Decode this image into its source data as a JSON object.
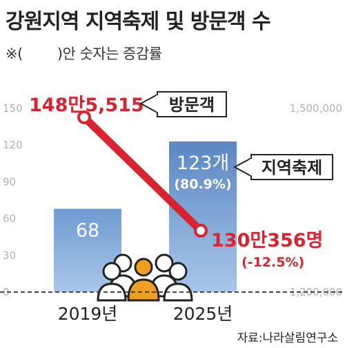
{
  "title": "강원지역 지역축제 및 방문객 수",
  "note": {
    "prefix": "※(",
    "suffix": ")안 숫자는 증감률"
  },
  "source": "자료:나라살림연구소",
  "chart_data": {
    "type": "bar+line",
    "categories": [
      "2019년",
      "2025년"
    ],
    "left_axis": {
      "ticks": [
        "0",
        "30",
        "60",
        "90",
        "120",
        "150"
      ],
      "ylim": [
        0,
        150
      ]
    },
    "right_axis": {
      "ticks": [
        "1,200,000",
        "1,500,000"
      ],
      "ylim": [
        1200000,
        1500000
      ]
    },
    "bars": {
      "name": "지역축제",
      "values": [
        68,
        123
      ],
      "labels": [
        "68",
        "123개"
      ],
      "change_labels": [
        "",
        "(80.9%)"
      ],
      "color": "#6f9bd1"
    },
    "line": {
      "name": "방문객",
      "values": [
        1485515,
        1300356
      ],
      "labels": [
        "148만5,515",
        "130만356명"
      ],
      "change_labels": [
        "",
        "(-12.5%)"
      ],
      "color": "#d9232e"
    },
    "grid": false,
    "legend": "inline callouts"
  },
  "colors": {
    "bar": "#6f9bd1",
    "line": "#d9232e",
    "people_icon": "#f0a020",
    "axis_text": "#b0b0b0"
  },
  "icons": [
    "people-group-icon"
  ]
}
